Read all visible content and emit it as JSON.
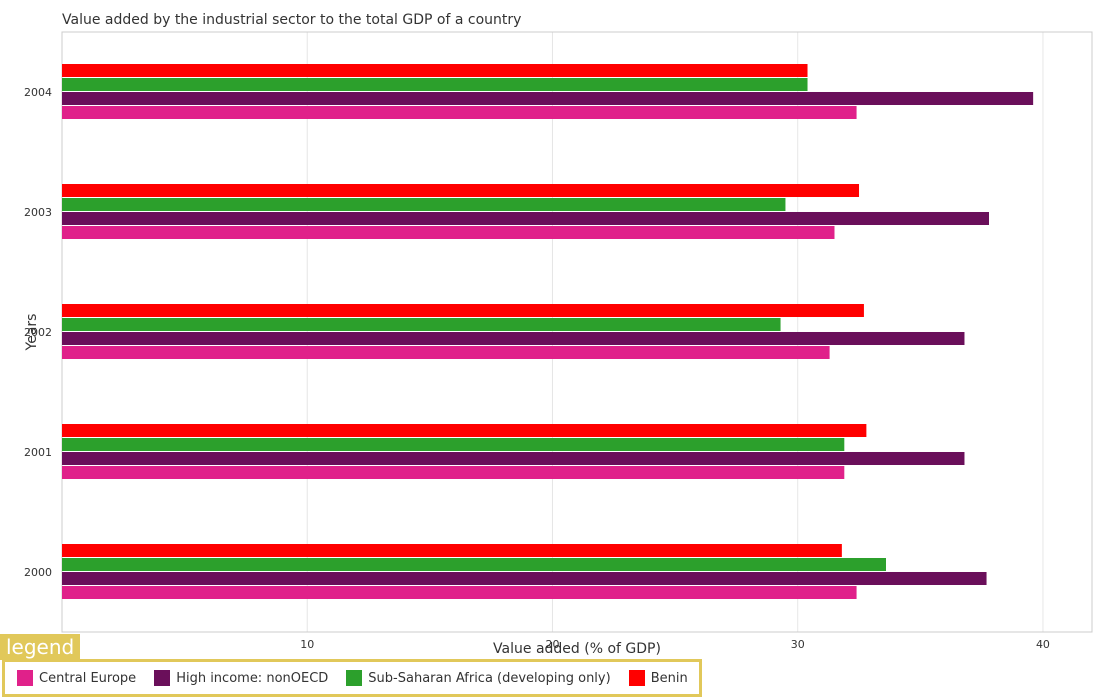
{
  "chart_data": {
    "type": "bar",
    "orientation": "horizontal",
    "title": "Value added by the industrial sector to the total GDP of a country",
    "xlabel": "Value added (% of GDP)",
    "ylabel": "Years",
    "xlim": [
      0,
      42
    ],
    "xticks": [
      0,
      10,
      20,
      30,
      40
    ],
    "categories": [
      "2000",
      "2001",
      "2002",
      "2003",
      "2004"
    ],
    "series": [
      {
        "name": "Central Europe",
        "color": "#e0218a",
        "values": [
          32.4,
          31.9,
          31.3,
          31.5,
          32.4
        ]
      },
      {
        "name": "High income: nonOECD",
        "color": "#6a0f5a",
        "values": [
          37.7,
          36.8,
          36.8,
          37.8,
          39.6
        ]
      },
      {
        "name": "Sub-Saharan Africa (developing only)",
        "color": "#2ca02c",
        "values": [
          33.6,
          31.9,
          29.3,
          29.5,
          30.4
        ]
      },
      {
        "name": "Benin",
        "color": "#ff0000",
        "values": [
          31.8,
          32.8,
          32.7,
          32.5,
          30.4
        ]
      }
    ],
    "legend_title": "legend",
    "legend_position": "bottom",
    "grid": true
  }
}
